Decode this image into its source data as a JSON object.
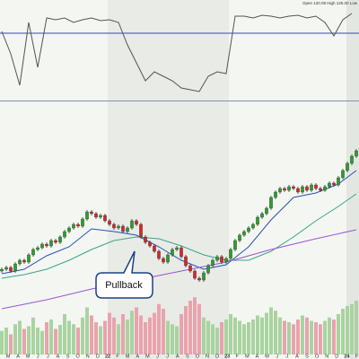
{
  "chart_data": {
    "type": "candlestick",
    "header": "Open 120.09 High 125.00 Low",
    "annotation": "Pullback",
    "ylim": [
      -10,
      100
    ],
    "up_color": "#2e9e2e",
    "down_color": "#d6282b",
    "open": [
      14,
      15,
      16,
      14,
      18,
      20,
      19,
      23,
      26,
      27,
      29,
      28,
      31,
      30,
      33,
      36,
      38,
      40,
      39,
      43,
      47,
      46,
      44,
      45,
      42,
      40,
      38,
      39,
      36,
      38,
      42,
      40,
      33,
      30,
      28,
      25,
      21,
      19,
      23,
      26,
      27,
      22,
      17,
      14,
      10,
      9,
      13,
      17,
      20,
      22,
      19,
      21,
      26,
      31,
      34,
      36,
      38,
      40,
      44,
      46,
      49,
      55,
      58,
      60,
      59,
      61,
      60,
      58,
      61,
      59,
      62,
      60,
      59,
      61,
      63,
      62,
      66,
      70,
      74,
      78
    ],
    "high": [
      16,
      17,
      17,
      19,
      21,
      21,
      24,
      27,
      28,
      30,
      30,
      32,
      32,
      34,
      37,
      39,
      41,
      41,
      44,
      48,
      48,
      47,
      46,
      46,
      43,
      41,
      40,
      40,
      39,
      43,
      43,
      41,
      34,
      31,
      29,
      26,
      22,
      24,
      27,
      28,
      28,
      23,
      18,
      15,
      11,
      14,
      18,
      21,
      23,
      23,
      22,
      27,
      32,
      35,
      37,
      39,
      41,
      45,
      47,
      50,
      56,
      59,
      61,
      61,
      62,
      62,
      61,
      62,
      62,
      63,
      63,
      61,
      62,
      64,
      64,
      67,
      71,
      75,
      79,
      82
    ],
    "low": [
      13,
      14,
      13,
      13,
      17,
      18,
      18,
      22,
      25,
      26,
      27,
      27,
      29,
      29,
      32,
      35,
      37,
      38,
      38,
      42,
      45,
      43,
      43,
      41,
      39,
      37,
      37,
      35,
      35,
      37,
      39,
      32,
      29,
      27,
      24,
      20,
      18,
      18,
      22,
      25,
      21,
      16,
      13,
      9,
      8,
      8,
      12,
      16,
      19,
      18,
      18,
      20,
      25,
      30,
      33,
      35,
      37,
      39,
      43,
      45,
      48,
      54,
      57,
      58,
      58,
      59,
      57,
      57,
      58,
      58,
      59,
      58,
      58,
      60,
      61,
      61,
      65,
      69,
      73,
      77
    ],
    "close": [
      15,
      16,
      14,
      18,
      20,
      19,
      23,
      26,
      27,
      29,
      28,
      31,
      30,
      33,
      36,
      38,
      40,
      39,
      43,
      47,
      46,
      44,
      45,
      42,
      40,
      38,
      39,
      36,
      38,
      42,
      40,
      33,
      30,
      28,
      25,
      21,
      19,
      23,
      26,
      27,
      22,
      17,
      14,
      10,
      9,
      13,
      17,
      20,
      22,
      19,
      21,
      26,
      31,
      34,
      36,
      38,
      40,
      44,
      46,
      49,
      55,
      58,
      60,
      59,
      61,
      60,
      58,
      61,
      59,
      62,
      60,
      59,
      61,
      63,
      62,
      66,
      70,
      74,
      78,
      81
    ],
    "volume": {
      "ylim": [
        0,
        100
      ],
      "up_color": "#a9d3a0",
      "down_color": "#e9a3ad",
      "values": [
        35,
        40,
        30,
        45,
        50,
        38,
        42,
        55,
        40,
        35,
        48,
        52,
        38,
        44,
        60,
        50,
        45,
        40,
        55,
        70,
        58,
        48,
        42,
        50,
        62,
        55,
        45,
        60,
        52,
        65,
        70,
        58,
        48,
        55,
        62,
        75,
        68,
        50,
        45,
        42,
        60,
        72,
        80,
        85,
        75,
        55,
        50,
        45,
        40,
        48,
        52,
        60,
        55,
        50,
        45,
        48,
        52,
        58,
        55,
        62,
        70,
        65,
        55,
        50,
        48,
        45,
        52,
        58,
        55,
        50,
        48,
        45,
        50,
        55,
        52,
        60,
        68,
        72,
        75,
        80
      ]
    },
    "moving_averages": [
      {
        "color": "#2a4fb8",
        "x": [
          0,
          5,
          10,
          15,
          20,
          25,
          30,
          35,
          40,
          45,
          50,
          55,
          60,
          65,
          70,
          75,
          79
        ],
        "values": [
          12.5,
          15,
          22.5,
          27.5,
          37.5,
          36,
          34,
          27.5,
          20,
          15,
          17.5,
          27.5,
          42.5,
          55,
          57.5,
          62.5,
          70
        ]
      },
      {
        "color": "#3aa58a",
        "x": [
          0,
          5,
          10,
          15,
          20,
          25,
          30,
          35,
          40,
          45,
          50,
          55,
          60,
          65,
          70,
          75,
          79
        ],
        "values": [
          10,
          12,
          15,
          20,
          26,
          31,
          33,
          32,
          28,
          23,
          20,
          20,
          25,
          33,
          42,
          50,
          57
        ]
      },
      {
        "color": "#9a55d6",
        "x": [
          0,
          10,
          20,
          30,
          40,
          50,
          60,
          70,
          79
        ],
        "values": [
          -7,
          -2,
          4,
          9,
          14,
          19,
          26,
          32,
          37
        ]
      }
    ],
    "oscillator": {
      "ylim": [
        0,
        100
      ],
      "level": 73,
      "color": "#555555",
      "level_color": "#3344cc",
      "x": [
        0,
        2,
        4,
        6,
        8,
        10,
        12,
        14,
        16,
        18,
        20,
        22,
        24,
        26,
        28,
        30,
        32,
        34,
        36,
        38,
        40,
        42,
        44,
        46,
        48,
        50,
        52,
        54,
        56,
        58,
        60,
        62,
        64,
        66,
        68,
        70,
        72,
        74,
        76,
        78
      ],
      "values": [
        75,
        50,
        15,
        85,
        35,
        90,
        88,
        90,
        85,
        88,
        90,
        87,
        88,
        85,
        60,
        40,
        20,
        30,
        25,
        20,
        12,
        10,
        8,
        25,
        30,
        28,
        92,
        92,
        90,
        93,
        92,
        90,
        92,
        93,
        90,
        92,
        85,
        70,
        88,
        95
      ]
    },
    "months": [
      "M",
      "A",
      "M",
      "J",
      "J",
      "A",
      "S",
      "O",
      "N",
      "D",
      "22",
      "F",
      "M",
      "A",
      "M",
      "J",
      "J",
      "A",
      "S",
      "O",
      "N",
      "D",
      "23",
      "F",
      "M",
      "A",
      "M",
      "J",
      "J",
      "A",
      "S",
      "O",
      "N",
      "D",
      "24",
      "F"
    ]
  }
}
